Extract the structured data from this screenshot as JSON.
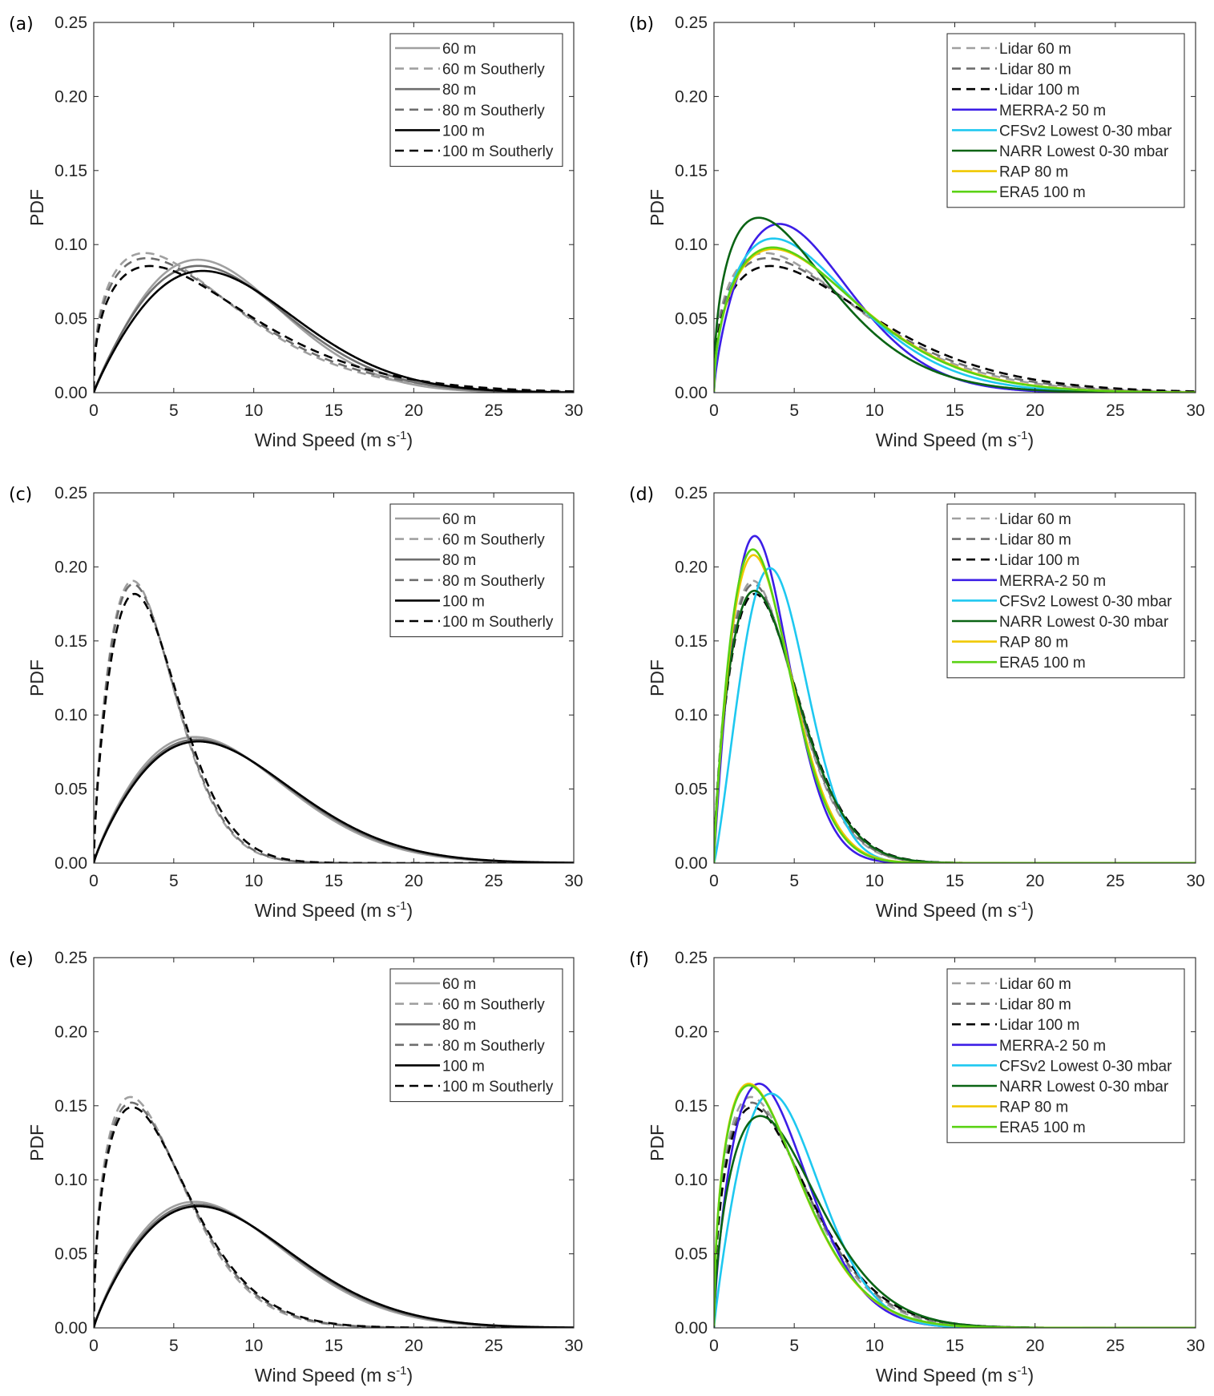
{
  "chart_data": [
    {
      "panel_label": "(a)",
      "type": "line",
      "xlabel": "Wind Speed (m s",
      "xlabel_sup": "-1",
      "xlabel_end": ")",
      "ylabel": "PDF",
      "xlim": [
        0,
        30
      ],
      "ylim": [
        0,
        0.25
      ],
      "xticks": [
        "0",
        "5",
        "10",
        "15",
        "20",
        "25",
        "30"
      ],
      "yticks": [
        "0.00",
        "0.05",
        "0.10",
        "0.15",
        "0.20",
        "0.25"
      ],
      "legend_position": "top-right",
      "curve_model": "weibull (shape k, scale c)",
      "series": [
        {
          "name": "60 m",
          "color": "#a0a0a0",
          "dashed": false,
          "k": 1.95,
          "c": 9.4
        },
        {
          "name": "60 m Southerly",
          "color": "#a0a0a0",
          "dashed": true,
          "k": 1.4,
          "c": 7.8
        },
        {
          "name": "80 m",
          "color": "#6e6e6e",
          "dashed": false,
          "k": 1.9,
          "c": 9.7
        },
        {
          "name": "80 m Southerly",
          "color": "#6e6e6e",
          "dashed": true,
          "k": 1.4,
          "c": 8.1
        },
        {
          "name": "100 m",
          "color": "#000000",
          "dashed": false,
          "k": 1.9,
          "c": 10.1
        },
        {
          "name": "100 m Southerly",
          "color": "#000000",
          "dashed": true,
          "k": 1.4,
          "c": 8.6
        }
      ]
    },
    {
      "panel_label": "(b)",
      "type": "line",
      "xlabel": "Wind Speed (m s",
      "xlabel_sup": "-1",
      "xlabel_end": ")",
      "ylabel": "PDF",
      "xlim": [
        0,
        30
      ],
      "ylim": [
        0,
        0.25
      ],
      "xticks": [
        "0",
        "5",
        "10",
        "15",
        "20",
        "25",
        "30"
      ],
      "yticks": [
        "0.00",
        "0.05",
        "0.10",
        "0.15",
        "0.20",
        "0.25"
      ],
      "legend_position": "top-right",
      "curve_model": "weibull (shape k, scale c)",
      "series": [
        {
          "name": "Lidar 60 m",
          "color": "#a0a0a0",
          "dashed": true,
          "k": 1.4,
          "c": 7.8
        },
        {
          "name": "Lidar 80 m",
          "color": "#6e6e6e",
          "dashed": true,
          "k": 1.4,
          "c": 8.1
        },
        {
          "name": "Lidar 100 m",
          "color": "#000000",
          "dashed": true,
          "k": 1.4,
          "c": 8.6
        },
        {
          "name": "MERRA-2 50 m",
          "color": "#3c1ee6",
          "dashed": false,
          "k": 1.7,
          "c": 6.86
        },
        {
          "name": "CFSv2 Lowest 0-30 mbar",
          "color": "#1ec8f0",
          "dashed": false,
          "k": 1.55,
          "c": 7.23
        },
        {
          "name": "NARR Lowest 0-30 mbar",
          "color": "#0a6414",
          "dashed": false,
          "k": 1.45,
          "c": 6.26
        },
        {
          "name": "RAP 80 m",
          "color": "#f0c800",
          "dashed": false,
          "k": 1.5,
          "c": 7.68
        },
        {
          "name": "ERA5 100 m",
          "color": "#5ad214",
          "dashed": false,
          "k": 1.5,
          "c": 7.6
        }
      ]
    },
    {
      "panel_label": "(c)",
      "type": "line",
      "xlabel": "Wind Speed (m s",
      "xlabel_sup": "-1",
      "xlabel_end": ")",
      "ylabel": "PDF",
      "xlim": [
        0,
        30
      ],
      "ylim": [
        0,
        0.25
      ],
      "xticks": [
        "0",
        "5",
        "10",
        "15",
        "20",
        "25",
        "30"
      ],
      "yticks": [
        "0.00",
        "0.05",
        "0.10",
        "0.15",
        "0.20",
        "0.25"
      ],
      "legend_position": "top-right",
      "curve_model": "weibull (shape k, scale c)",
      "series": [
        {
          "name": "60 m",
          "color": "#a0a0a0",
          "dashed": false,
          "k": 1.85,
          "c": 9.6
        },
        {
          "name": "60 m Southerly",
          "color": "#a0a0a0",
          "dashed": true,
          "k": 1.7,
          "c": 4.1
        },
        {
          "name": "80 m",
          "color": "#6e6e6e",
          "dashed": false,
          "k": 1.85,
          "c": 9.8
        },
        {
          "name": "80 m Southerly",
          "color": "#6e6e6e",
          "dashed": true,
          "k": 1.7,
          "c": 4.15
        },
        {
          "name": "100 m",
          "color": "#000000",
          "dashed": false,
          "k": 1.85,
          "c": 9.95
        },
        {
          "name": "100 m Southerly",
          "color": "#000000",
          "dashed": true,
          "k": 1.7,
          "c": 4.3
        }
      ]
    },
    {
      "panel_label": "(d)",
      "type": "line",
      "xlabel": "Wind Speed (m s",
      "xlabel_sup": "-1",
      "xlabel_end": ")",
      "ylabel": "PDF",
      "xlim": [
        0,
        30
      ],
      "ylim": [
        0,
        0.25
      ],
      "xticks": [
        "0",
        "5",
        "10",
        "15",
        "20",
        "25",
        "30"
      ],
      "yticks": [
        "0.00",
        "0.05",
        "0.10",
        "0.15",
        "0.20",
        "0.25"
      ],
      "legend_position": "top-right",
      "curve_model": "weibull (shape k, scale c)",
      "series": [
        {
          "name": "Lidar 60 m",
          "color": "#a0a0a0",
          "dashed": true,
          "k": 1.7,
          "c": 4.1
        },
        {
          "name": "Lidar 80 m",
          "color": "#6e6e6e",
          "dashed": true,
          "k": 1.7,
          "c": 4.15
        },
        {
          "name": "Lidar 100 m",
          "color": "#000000",
          "dashed": true,
          "k": 1.7,
          "c": 4.3
        },
        {
          "name": "MERRA-2 50 m",
          "color": "#3c1ee6",
          "dashed": false,
          "k": 1.9,
          "c": 3.76
        },
        {
          "name": "CFSv2 Lowest 0-30 mbar",
          "color": "#1ec8f0",
          "dashed": false,
          "k": 2.2,
          "c": 4.6
        },
        {
          "name": "NARR Lowest 0-30 mbar",
          "color": "#0a6414",
          "dashed": false,
          "k": 1.7,
          "c": 4.25
        },
        {
          "name": "RAP 80 m",
          "color": "#f0c800",
          "dashed": false,
          "k": 1.8,
          "c": 3.87
        },
        {
          "name": "ERA5 100 m",
          "color": "#5ad214",
          "dashed": false,
          "k": 1.8,
          "c": 3.8
        }
      ]
    },
    {
      "panel_label": "(e)",
      "type": "line",
      "xlabel": "Wind Speed (m s",
      "xlabel_sup": "-1",
      "xlabel_end": ")",
      "ylabel": "PDF",
      "xlim": [
        0,
        30
      ],
      "ylim": [
        0,
        0.25
      ],
      "xticks": [
        "0",
        "5",
        "10",
        "15",
        "20",
        "25",
        "30"
      ],
      "yticks": [
        "0.00",
        "0.05",
        "0.10",
        "0.15",
        "0.20",
        "0.25"
      ],
      "legend_position": "top-right",
      "curve_model": "weibull (shape k, scale c)",
      "series": [
        {
          "name": "60 m",
          "color": "#a0a0a0",
          "dashed": false,
          "k": 1.85,
          "c": 9.6
        },
        {
          "name": "60 m Southerly",
          "color": "#a0a0a0",
          "dashed": true,
          "k": 1.5,
          "c": 4.78
        },
        {
          "name": "80 m",
          "color": "#6e6e6e",
          "dashed": false,
          "k": 1.85,
          "c": 9.8
        },
        {
          "name": "80 m Southerly",
          "color": "#6e6e6e",
          "dashed": true,
          "k": 1.5,
          "c": 4.9
        },
        {
          "name": "100 m",
          "color": "#000000",
          "dashed": false,
          "k": 1.85,
          "c": 9.95
        },
        {
          "name": "100 m Southerly",
          "color": "#000000",
          "dashed": true,
          "k": 1.5,
          "c": 5.0
        }
      ]
    },
    {
      "panel_label": "(f)",
      "type": "line",
      "xlabel": "Wind Speed (m s",
      "xlabel_sup": "-1",
      "xlabel_end": ")",
      "ylabel": "PDF",
      "xlim": [
        0,
        30
      ],
      "ylim": [
        0,
        0.25
      ],
      "xticks": [
        "0",
        "5",
        "10",
        "15",
        "20",
        "25",
        "30"
      ],
      "yticks": [
        "0.00",
        "0.05",
        "0.10",
        "0.15",
        "0.20",
        "0.25"
      ],
      "legend_position": "top-right",
      "curve_model": "weibull (shape k, scale c)",
      "series": [
        {
          "name": "Lidar 60 m",
          "color": "#a0a0a0",
          "dashed": true,
          "k": 1.5,
          "c": 4.78
        },
        {
          "name": "Lidar 80 m",
          "color": "#6e6e6e",
          "dashed": true,
          "k": 1.5,
          "c": 4.9
        },
        {
          "name": "Lidar 100 m",
          "color": "#000000",
          "dashed": true,
          "k": 1.5,
          "c": 5.0
        },
        {
          "name": "MERRA-2 50 m",
          "color": "#3c1ee6",
          "dashed": false,
          "k": 1.7,
          "c": 4.74
        },
        {
          "name": "CFSv2 Lowest 0-30 mbar",
          "color": "#1ec8f0",
          "dashed": false,
          "k": 1.9,
          "c": 5.25
        },
        {
          "name": "NARR Lowest 0-30 mbar",
          "color": "#0a6414",
          "dashed": false,
          "k": 1.6,
          "c": 5.32
        },
        {
          "name": "RAP 80 m",
          "color": "#f0c800",
          "dashed": false,
          "k": 1.5,
          "c": 4.52
        },
        {
          "name": "ERA5 100 m",
          "color": "#5ad214",
          "dashed": false,
          "k": 1.5,
          "c": 4.55
        }
      ]
    }
  ]
}
